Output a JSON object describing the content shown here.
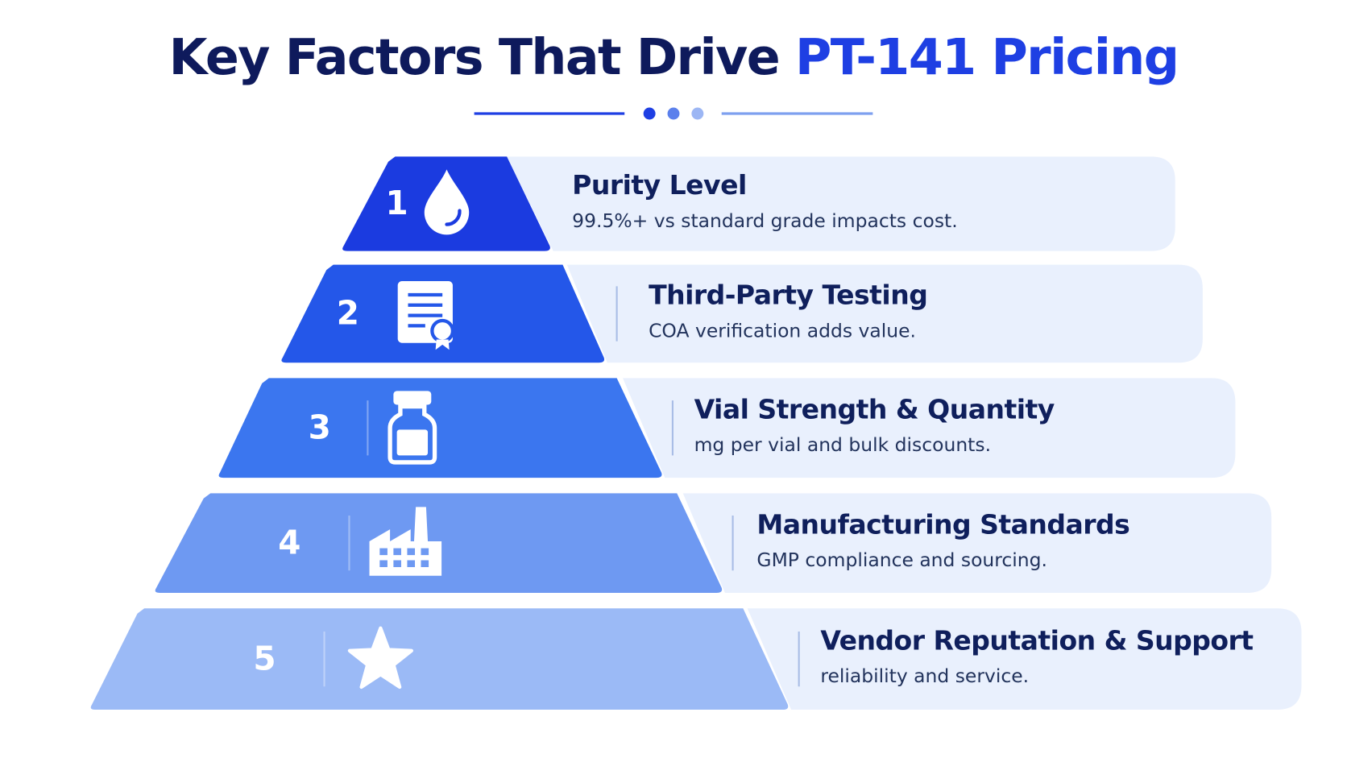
{
  "header": {
    "title_part1": "Key Factors That Drive ",
    "title_part2": "PT-141 Pricing"
  },
  "levels": [
    {
      "number": "1",
      "title": "Purity Level",
      "description": "99.5%+ vs standard grade impacts cost."
    },
    {
      "number": "2",
      "title": "Third-Party Testing",
      "description": "COA verification adds value."
    },
    {
      "number": "3",
      "title": "Vial Strength & Quantity",
      "description": "mg per vial and bulk discounts."
    },
    {
      "number": "4",
      "title": "Manufacturing Standards",
      "description": "GMP compliance and sourcing."
    },
    {
      "number": "5",
      "title": "Vendor Reputation & Support",
      "description": "reliability and service."
    }
  ]
}
